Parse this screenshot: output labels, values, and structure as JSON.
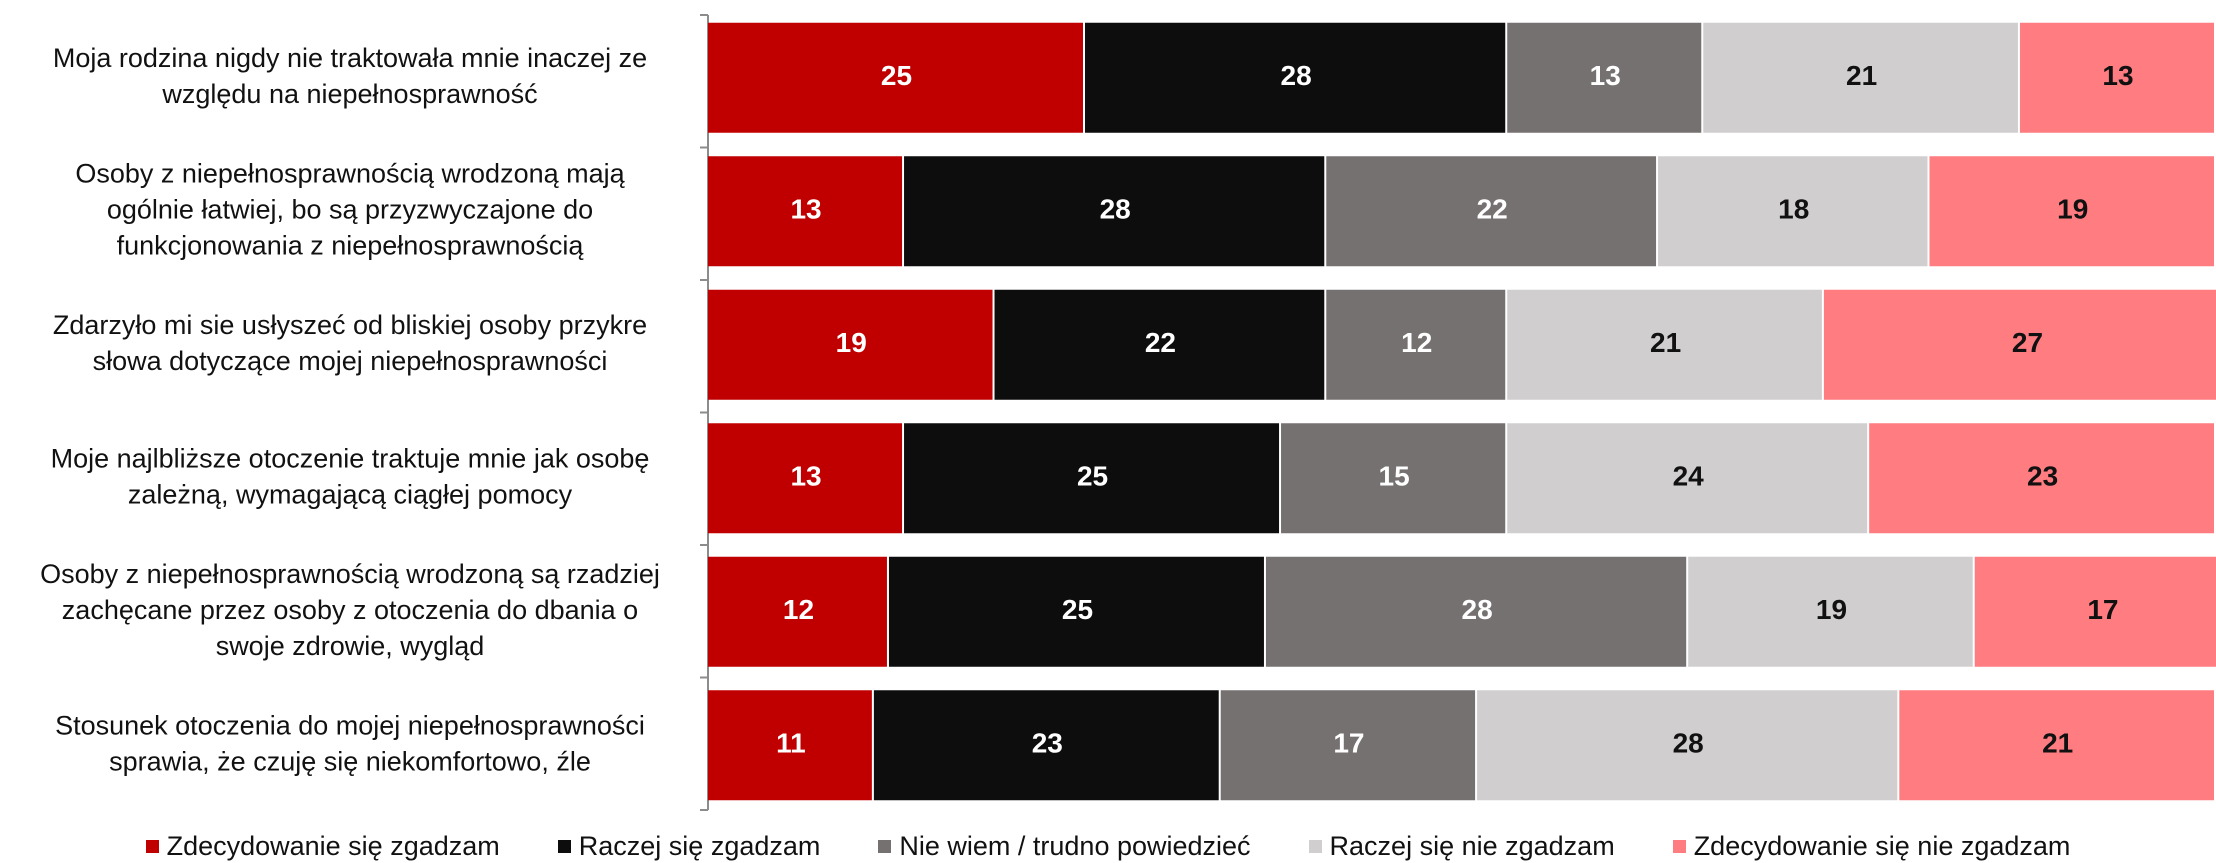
{
  "chart_data": {
    "type": "bar",
    "orientation": "horizontal",
    "stacked": true,
    "categories": [
      "Moja rodzina nigdy nie traktowała mnie inaczej ze względu na niepełnosprawność",
      "Osoby z niepełnosprawnością wrodzoną mają ogólnie łatwiej, bo są przyzwyczajone do funkcjonowania z niepełnosprawnością",
      "Zdarzyło mi sie usłyszeć od bliskiej osoby przykre słowa dotyczące mojej niepełnosprawności",
      "Moje najlbliższe otoczenie traktuje mnie jak osobę zależną, wymagającą ciągłej pomocy",
      "Osoby z niepełnosprawnością wrodzoną są rzadziej zachęcane przez osoby z otoczenia do dbania o swoje zdrowie, wygląd",
      "Stosunek otoczenia do mojej niepełnosprawności sprawia, że czuję się niekomfortowo, źle"
    ],
    "category_lines": [
      [
        "Moja rodzina nigdy nie traktowała mnie inaczej ze",
        "względu na niepełnosprawność"
      ],
      [
        "Osoby z niepełnosprawnością wrodzoną mają",
        "ogólnie łatwiej, bo są przyzwyczajone do",
        "funkcjonowania z niepełnosprawnością"
      ],
      [
        "Zdarzyło mi sie usłyszeć od bliskiej osoby przykre",
        "słowa dotyczące mojej niepełnosprawności"
      ],
      [
        "Moje najlbliższe otoczenie traktuje mnie jak osobę",
        "zależną, wymagającą ciągłej pomocy"
      ],
      [
        "Osoby z niepełnosprawnością wrodzoną są rzadziej",
        "zachęcane przez osoby z otoczenia do dbania o",
        "swoje zdrowie, wygląd"
      ],
      [
        "Stosunek otoczenia do mojej niepełnosprawności",
        "sprawia, że czuję się niekomfortowo, źle"
      ]
    ],
    "series": [
      {
        "name": "Zdecydowanie się zgadzam",
        "color": "#c00000",
        "label_color": "#ffffff",
        "values": [
          25,
          13,
          19,
          13,
          12,
          11
        ]
      },
      {
        "name": "Raczej się zgadzam",
        "color": "#0d0d0d",
        "label_color": "#ffffff",
        "values": [
          28,
          28,
          22,
          25,
          25,
          23
        ]
      },
      {
        "name": "Nie wiem / trudno powiedzieć",
        "color": "#767171",
        "label_color": "#ffffff",
        "values": [
          13,
          22,
          12,
          15,
          28,
          17
        ]
      },
      {
        "name": "Raczej się nie zgadzam",
        "color": "#d0cece",
        "label_color": "#111111",
        "values": [
          21,
          18,
          21,
          24,
          19,
          28
        ]
      },
      {
        "name": "Zdecydowanie się nie zgadzam",
        "color": "#ff7c80",
        "label_color": "#111111",
        "values": [
          13,
          19,
          27,
          23,
          17,
          21
        ]
      }
    ],
    "xlim": [
      0,
      100
    ],
    "legend_position": "bottom",
    "grid": false
  }
}
